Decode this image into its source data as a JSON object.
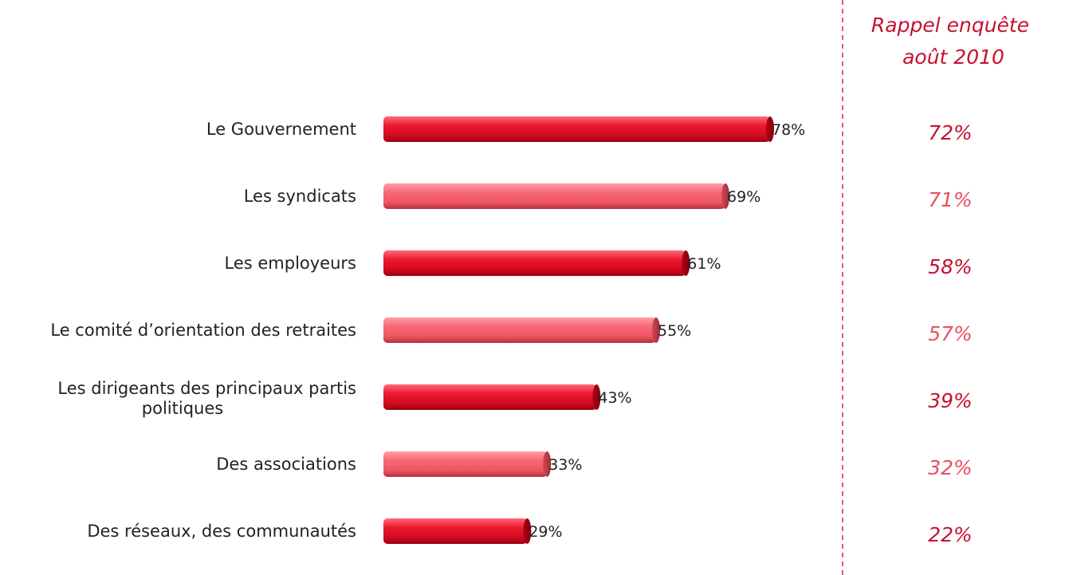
{
  "colors": {
    "dark_bar": "#e3001b",
    "light_bar": "#f15b68",
    "dark_text": "#c8102e",
    "light_text": "#e8505f",
    "divider": "#d9263a",
    "label": "#222222"
  },
  "rappel": {
    "title_line1": "Rappel enquête",
    "title_line2": "août 2010"
  },
  "chart_data": {
    "type": "bar",
    "orientation": "horizontal",
    "title": "",
    "xlabel": "",
    "ylabel": "",
    "xlim": [
      0,
      100
    ],
    "unit": "%",
    "grid": false,
    "categories": [
      [
        "Le Gouvernement"
      ],
      [
        "Les syndicats"
      ],
      [
        "Les employeurs"
      ],
      [
        "Le comité d’orientation des retraites"
      ],
      [
        "Les dirigeants des principaux partis",
        "politiques"
      ],
      [
        "Des associations"
      ],
      [
        "Des réseaux, des communautés"
      ]
    ],
    "values": [
      78,
      69,
      61,
      55,
      43,
      33,
      29
    ],
    "value_labels": [
      "78%",
      "69%",
      "61%",
      "55%",
      "43%",
      "33%",
      "29%"
    ],
    "comparison_labels": [
      "72%",
      "71%",
      "58%",
      "57%",
      "39%",
      "32%",
      "22%"
    ],
    "comparison_values": [
      72,
      71,
      58,
      57,
      39,
      32,
      22
    ],
    "shade": [
      "dark",
      "light",
      "dark",
      "light",
      "dark",
      "light",
      "dark"
    ]
  }
}
